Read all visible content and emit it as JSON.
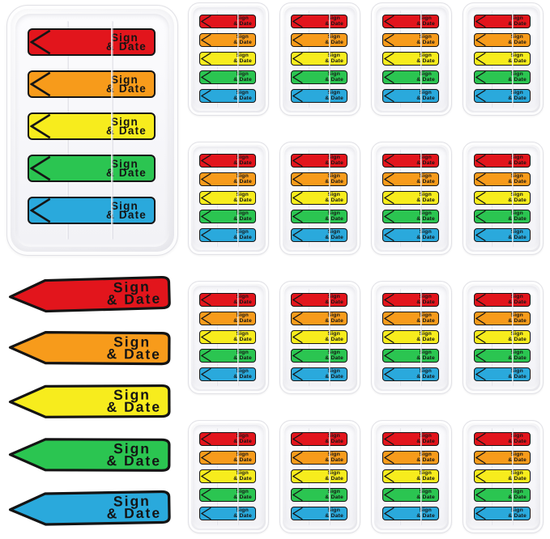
{
  "product": {
    "name": "sign-and-date-page-marker-flags",
    "label": {
      "line1": "Sign",
      "line2": "& Date"
    },
    "colors": [
      {
        "name": "red",
        "hex": "#e2151c"
      },
      {
        "name": "orange",
        "hex": "#f79b1b"
      },
      {
        "name": "yellow",
        "hex": "#f7ec1d"
      },
      {
        "name": "green",
        "hex": "#2bc551"
      },
      {
        "name": "blue",
        "hex": "#2aa9dc"
      }
    ],
    "outline_color": "#141414",
    "flags_per_dispenser": 5,
    "large_dispenser_count": 1,
    "small_dispenser_grid": {
      "rows": 4,
      "cols": 4,
      "count": 16
    },
    "loose_flag_count": 5
  }
}
